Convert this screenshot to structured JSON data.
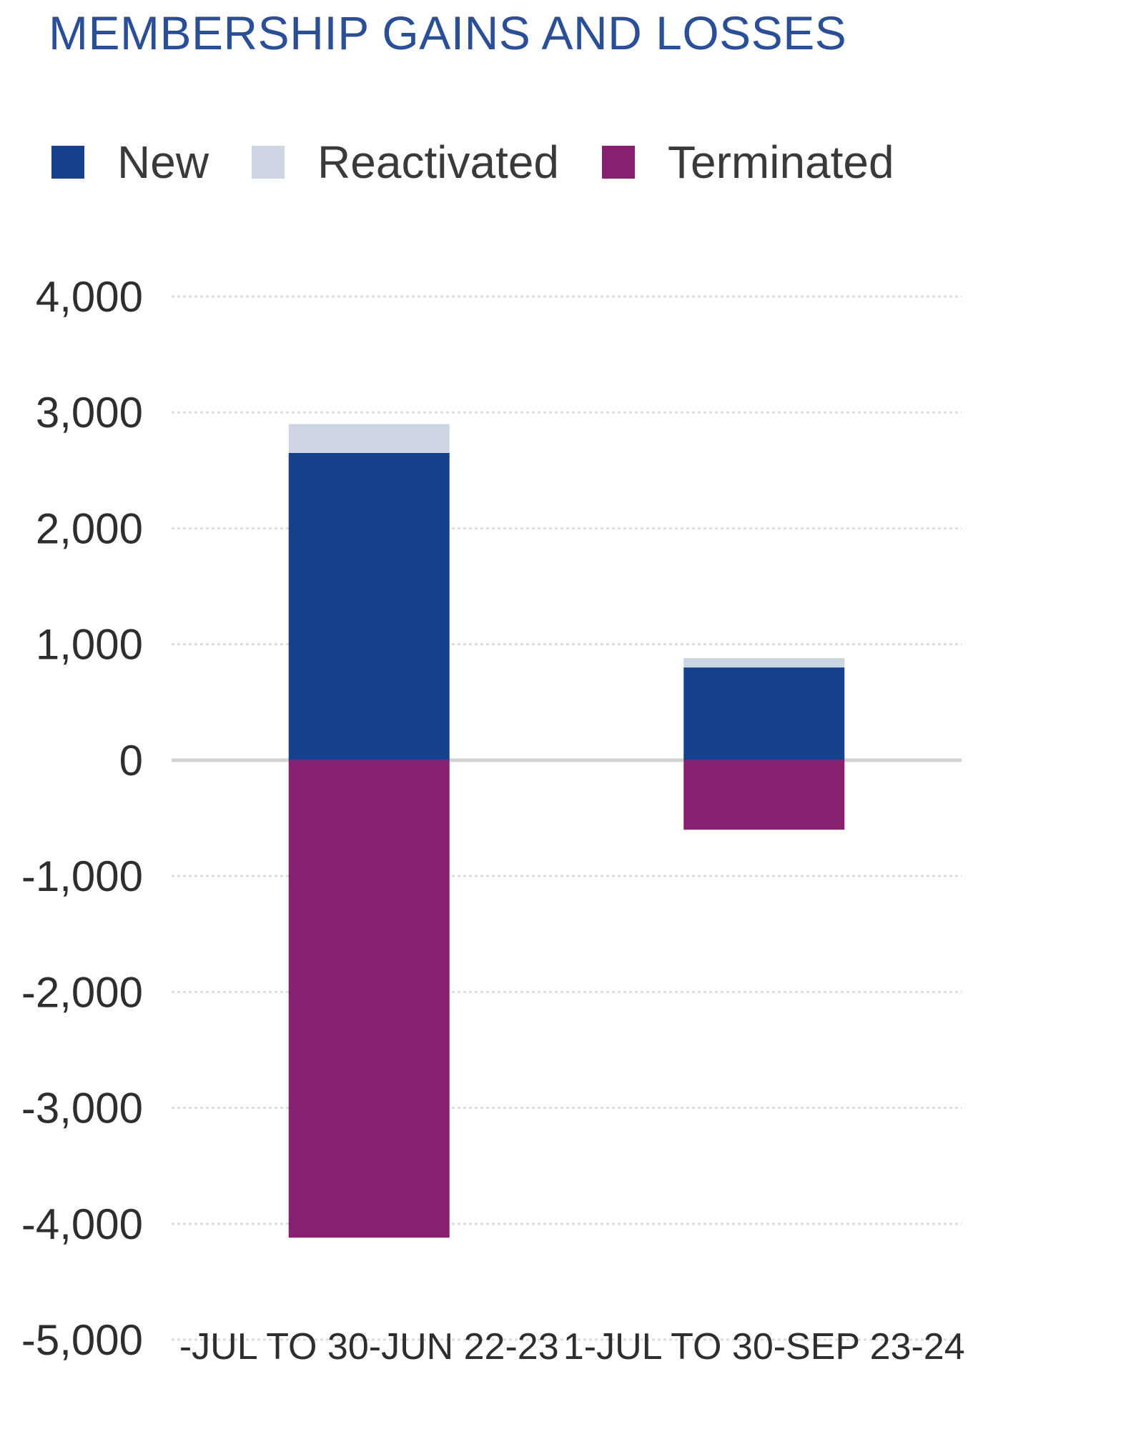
{
  "chart_data": {
    "type": "bar",
    "stacked": true,
    "title": "MEMBERSHIP GAINS AND LOSSES",
    "categories": [
      "-JUL TO 30-JUN 22-23",
      "1-JUL TO 30-SEP 23-24"
    ],
    "series": [
      {
        "name": "New",
        "color": "#16418c",
        "values": [
          2650,
          800
        ]
      },
      {
        "name": "Reactivated",
        "color": "#cdd5e3",
        "values": [
          250,
          80
        ]
      },
      {
        "name": "Terminated",
        "color": "#87206e",
        "values": [
          -4120,
          -600
        ]
      }
    ],
    "ylim": [
      -5000,
      4000
    ],
    "yticks": [
      4000,
      3000,
      2000,
      1000,
      0,
      -1000,
      -2000,
      -3000,
      -4000,
      -5000
    ],
    "ytick_labels": [
      "4,000",
      "3,000",
      "2,000",
      "1,000",
      "0",
      "-1,000",
      "-2,000",
      "-3,000",
      "-4,000",
      "-5,000"
    ],
    "xlabel": "",
    "ylabel": "",
    "grid": true,
    "legend_position": "top-left"
  }
}
